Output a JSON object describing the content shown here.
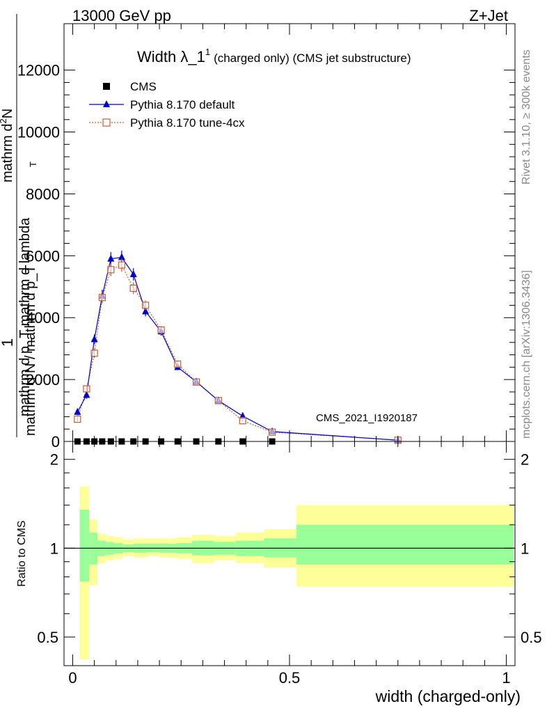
{
  "header": {
    "energy_label": "13000 GeV pp",
    "process_label": "Z+Jet"
  },
  "side_labels": {
    "rivet": "Rivet 3.1.10, ≥ 300k events",
    "mcplots": "mcplots.cern.ch [arXiv:1306.3436]"
  },
  "chart_data": [
    {
      "type": "line",
      "title_main": "Width λ_1",
      "title_sup": "1",
      "title_rest": "(charged only) (CMS jet substructure)",
      "ylabel_top": "1",
      "ylabel_den": "mathrm d N / mathrm d p_T",
      "ylabel_num_line1": "mathrm d",
      "ylabel_num_line2": "mathrm d p_T mathrm d lambda",
      "ylabel_num_sup": "2",
      "ylabel_num_n": "N",
      "ylabel_t_sub": "T",
      "xlabel": "width (charged-only)",
      "watermark": "CMS_2021_I1920187",
      "ylim": [
        0,
        13500
      ],
      "yticks": [
        0,
        2000,
        4000,
        6000,
        8000,
        10000,
        12000
      ],
      "ytick_labels": [
        "0",
        "2000",
        "4000",
        "6000",
        "8000",
        "10000",
        "12000"
      ],
      "xlim": [
        -0.02,
        1.02
      ],
      "legend_position": "top-left",
      "series": [
        {
          "name": "CMS",
          "color": "#000000",
          "marker": "square",
          "x": [
            0.011,
            0.032,
            0.05,
            0.068,
            0.088,
            0.113,
            0.14,
            0.168,
            0.204,
            0.242,
            0.285,
            0.336,
            0.392,
            0.46
          ],
          "y": [
            0,
            0,
            0,
            0,
            0,
            0,
            0,
            0,
            0,
            0,
            0,
            0,
            0,
            0
          ]
        },
        {
          "name": "Pythia 8.170 default",
          "color": "#0000cc",
          "marker": "triangle",
          "x": [
            0.011,
            0.032,
            0.05,
            0.068,
            0.088,
            0.113,
            0.14,
            0.168,
            0.204,
            0.242,
            0.285,
            0.336,
            0.392,
            0.46,
            0.75
          ],
          "y": [
            950,
            1500,
            3300,
            4700,
            5900,
            5950,
            5400,
            4200,
            3550,
            2400,
            1930,
            1320,
            820,
            320,
            40
          ],
          "err": [
            100,
            120,
            160,
            200,
            220,
            220,
            200,
            160,
            130,
            90,
            70,
            50,
            30,
            20,
            5
          ]
        },
        {
          "name": "Pythia 8.170 tune-4cx",
          "color": "#c06030",
          "marker": "open-square",
          "x": [
            0.011,
            0.032,
            0.05,
            0.068,
            0.088,
            0.113,
            0.14,
            0.168,
            0.204,
            0.242,
            0.285,
            0.336,
            0.392,
            0.46,
            0.75
          ],
          "y": [
            720,
            1700,
            2850,
            4650,
            5550,
            5700,
            4950,
            4400,
            3600,
            2500,
            1920,
            1320,
            670,
            300,
            40
          ],
          "err": [
            80,
            110,
            150,
            190,
            210,
            210,
            190,
            160,
            130,
            90,
            70,
            50,
            30,
            20,
            5
          ]
        }
      ]
    },
    {
      "type": "area",
      "ylabel": "Ratio to CMS",
      "ylim": [
        0.4,
        2.3
      ],
      "yticks": [
        0.5,
        1,
        2
      ],
      "ytick_labels": [
        "0.5",
        "1",
        "2"
      ],
      "xlim": [
        -0.02,
        1.02
      ],
      "xticks": [
        0,
        0.5,
        1
      ],
      "xtick_labels": [
        "0",
        "0.5",
        "1"
      ],
      "reference_line": 1,
      "band_colors": {
        "inner": "#99ff99",
        "outer": "#ffff99"
      },
      "bins": [
        {
          "x0": 0.0,
          "x1": 0.022,
          "outer_lo": 0.42,
          "outer_hi": 1.62,
          "inner_lo": 0.77,
          "inner_hi": 1.35
        },
        {
          "x0": 0.022,
          "x1": 0.041,
          "outer_lo": 0.75,
          "outer_hi": 1.25,
          "inner_lo": 0.88,
          "inner_hi": 1.13
        },
        {
          "x0": 0.041,
          "x1": 0.059,
          "outer_lo": 0.89,
          "outer_hi": 1.12,
          "inner_lo": 0.94,
          "inner_hi": 1.06
        },
        {
          "x0": 0.059,
          "x1": 0.078,
          "outer_lo": 0.91,
          "outer_hi": 1.1,
          "inner_lo": 0.95,
          "inner_hi": 1.05
        },
        {
          "x0": 0.078,
          "x1": 0.1,
          "outer_lo": 0.92,
          "outer_hi": 1.09,
          "inner_lo": 0.96,
          "inner_hi": 1.04
        },
        {
          "x0": 0.1,
          "x1": 0.125,
          "outer_lo": 0.94,
          "outer_hi": 1.07,
          "inner_lo": 0.97,
          "inner_hi": 1.03
        },
        {
          "x0": 0.125,
          "x1": 0.155,
          "outer_lo": 0.93,
          "outer_hi": 1.08,
          "inner_lo": 0.965,
          "inner_hi": 1.035
        },
        {
          "x0": 0.155,
          "x1": 0.183,
          "outer_lo": 0.94,
          "outer_hi": 1.08,
          "inner_lo": 0.97,
          "inner_hi": 1.035
        },
        {
          "x0": 0.183,
          "x1": 0.224,
          "outer_lo": 0.93,
          "outer_hi": 1.08,
          "inner_lo": 0.965,
          "inner_hi": 1.035
        },
        {
          "x0": 0.224,
          "x1": 0.259,
          "outer_lo": 0.92,
          "outer_hi": 1.09,
          "inner_lo": 0.96,
          "inner_hi": 1.04
        },
        {
          "x0": 0.259,
          "x1": 0.31,
          "outer_lo": 0.89,
          "outer_hi": 1.11,
          "inner_lo": 0.945,
          "inner_hi": 1.06
        },
        {
          "x0": 0.31,
          "x1": 0.36,
          "outer_lo": 0.91,
          "outer_hi": 1.1,
          "inner_lo": 0.95,
          "inner_hi": 1.05
        },
        {
          "x0": 0.36,
          "x1": 0.425,
          "outer_lo": 0.89,
          "outer_hi": 1.13,
          "inner_lo": 0.94,
          "inner_hi": 1.06
        },
        {
          "x0": 0.425,
          "x1": 0.5,
          "outer_lo": 0.86,
          "outer_hi": 1.16,
          "inner_lo": 0.93,
          "inner_hi": 1.08
        },
        {
          "x0": 0.5,
          "x1": 1.0,
          "outer_lo": 0.74,
          "outer_hi": 1.4,
          "inner_lo": 0.88,
          "inner_hi": 1.2
        }
      ]
    }
  ]
}
